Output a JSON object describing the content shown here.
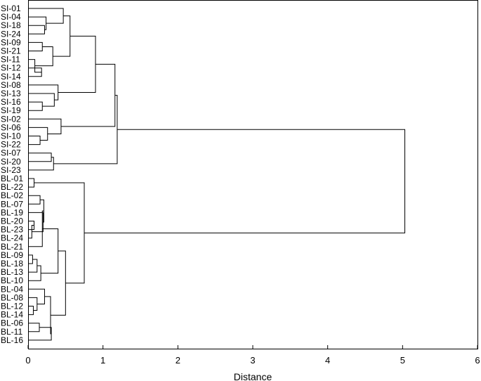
{
  "chart_data": {
    "type": "dendrogram",
    "orientation": "horizontal",
    "title": "",
    "xlabel": "Distance",
    "ylabel": "",
    "xlim": [
      0,
      6
    ],
    "xticks": [
      "0",
      "1",
      "2",
      "3",
      "4",
      "5",
      "6"
    ],
    "grid": false,
    "leaves": [
      "SI-01",
      "SI-04",
      "SI-18",
      "SI-24",
      "SI-09",
      "SI-21",
      "SI-11",
      "SI-12",
      "SI-14",
      "SI-08",
      "SI-13",
      "SI-16",
      "SI-19",
      "SI-02",
      "SI-06",
      "SI-10",
      "SI-22",
      "SI-07",
      "SI-20",
      "SI-23",
      "BL-01",
      "BL-22",
      "BL-02",
      "BL-07",
      "BL-19",
      "BL-20",
      "BL-23",
      "BL-24",
      "BL-21",
      "BL-09",
      "BL-18",
      "BL-13",
      "BL-10",
      "BL-04",
      "BL-08",
      "BL-12",
      "BL-14",
      "BL-06",
      "BL-11",
      "BL-16"
    ],
    "merges": [
      {
        "id": "a1",
        "children": [
          "SI-18",
          "SI-24"
        ],
        "height": 0.22
      },
      {
        "id": "a2",
        "children": [
          "SI-04",
          "a1"
        ],
        "height": 0.24
      },
      {
        "id": "a3",
        "children": [
          "SI-01",
          "a2"
        ],
        "height": 0.47
      },
      {
        "id": "a4",
        "children": [
          "SI-09",
          "SI-21"
        ],
        "height": 0.19
      },
      {
        "id": "a5",
        "children": [
          "SI-12",
          "SI-14"
        ],
        "height": 0.18
      },
      {
        "id": "a6",
        "children": [
          "SI-11",
          "a5"
        ],
        "height": 0.09
      },
      {
        "id": "a7",
        "children": [
          "a4",
          "a6"
        ],
        "height": 0.33
      },
      {
        "id": "a8",
        "children": [
          "a3",
          "a7"
        ],
        "height": 0.56
      },
      {
        "id": "a9",
        "children": [
          "SI-16",
          "SI-19"
        ],
        "height": 0.19
      },
      {
        "id": "a10",
        "children": [
          "SI-13",
          "a9"
        ],
        "height": 0.35
      },
      {
        "id": "a11",
        "children": [
          "SI-08",
          "a10"
        ],
        "height": 0.4
      },
      {
        "id": "a12",
        "children": [
          "a8",
          "a11"
        ],
        "height": 0.9
      },
      {
        "id": "a13",
        "children": [
          "SI-10",
          "SI-22"
        ],
        "height": 0.16
      },
      {
        "id": "a14",
        "children": [
          "SI-06",
          "a13"
        ],
        "height": 0.26
      },
      {
        "id": "a15",
        "children": [
          "SI-02",
          "a14"
        ],
        "height": 0.44
      },
      {
        "id": "a16",
        "children": [
          "a12",
          "a15"
        ],
        "height": 1.16
      },
      {
        "id": "a17",
        "children": [
          "SI-07",
          "SI-20"
        ],
        "height": 0.31
      },
      {
        "id": "a18",
        "children": [
          "a17",
          "SI-23"
        ],
        "height": 0.34
      },
      {
        "id": "a19",
        "children": [
          "a16",
          "a18"
        ],
        "height": 1.19
      },
      {
        "id": "b1",
        "children": [
          "BL-01",
          "BL-22"
        ],
        "height": 0.08
      },
      {
        "id": "b2",
        "children": [
          "BL-02",
          "BL-07"
        ],
        "height": 0.16
      },
      {
        "id": "b3",
        "children": [
          "BL-20",
          "BL-23"
        ],
        "height": 0.08
      },
      {
        "id": "b4",
        "children": [
          "b3",
          "BL-24"
        ],
        "height": 0.05
      },
      {
        "id": "b5",
        "children": [
          "BL-19",
          "b4"
        ],
        "height": 0.2
      },
      {
        "id": "b6",
        "children": [
          "b2",
          "b5"
        ],
        "height": 0.21
      },
      {
        "id": "b7",
        "children": [
          "b6",
          "BL-21"
        ],
        "height": 0.19
      },
      {
        "id": "b8",
        "children": [
          "BL-09",
          "BL-18"
        ],
        "height": 0.06
      },
      {
        "id": "b9",
        "children": [
          "b8",
          "BL-13"
        ],
        "height": 0.12
      },
      {
        "id": "b10",
        "children": [
          "b9",
          "BL-10"
        ],
        "height": 0.17
      },
      {
        "id": "b11",
        "children": [
          "b7",
          "b10"
        ],
        "height": 0.4
      },
      {
        "id": "b12",
        "children": [
          "BL-12",
          "BL-14"
        ],
        "height": 0.07
      },
      {
        "id": "b13",
        "children": [
          "BL-08",
          "b12"
        ],
        "height": 0.12
      },
      {
        "id": "b14",
        "children": [
          "BL-04",
          "b13"
        ],
        "height": 0.22
      },
      {
        "id": "b15",
        "children": [
          "BL-06",
          "BL-11"
        ],
        "height": 0.15
      },
      {
        "id": "b16",
        "children": [
          "b15",
          "BL-16"
        ],
        "height": 0.31
      },
      {
        "id": "b17",
        "children": [
          "b14",
          "b16"
        ],
        "height": 0.3
      },
      {
        "id": "b18",
        "children": [
          "b11",
          "b17"
        ],
        "height": 0.5
      },
      {
        "id": "b19",
        "children": [
          "b1",
          "b18"
        ],
        "height": 0.75
      },
      {
        "id": "root",
        "children": [
          "a19",
          "b19"
        ],
        "height": 5.03
      }
    ]
  }
}
